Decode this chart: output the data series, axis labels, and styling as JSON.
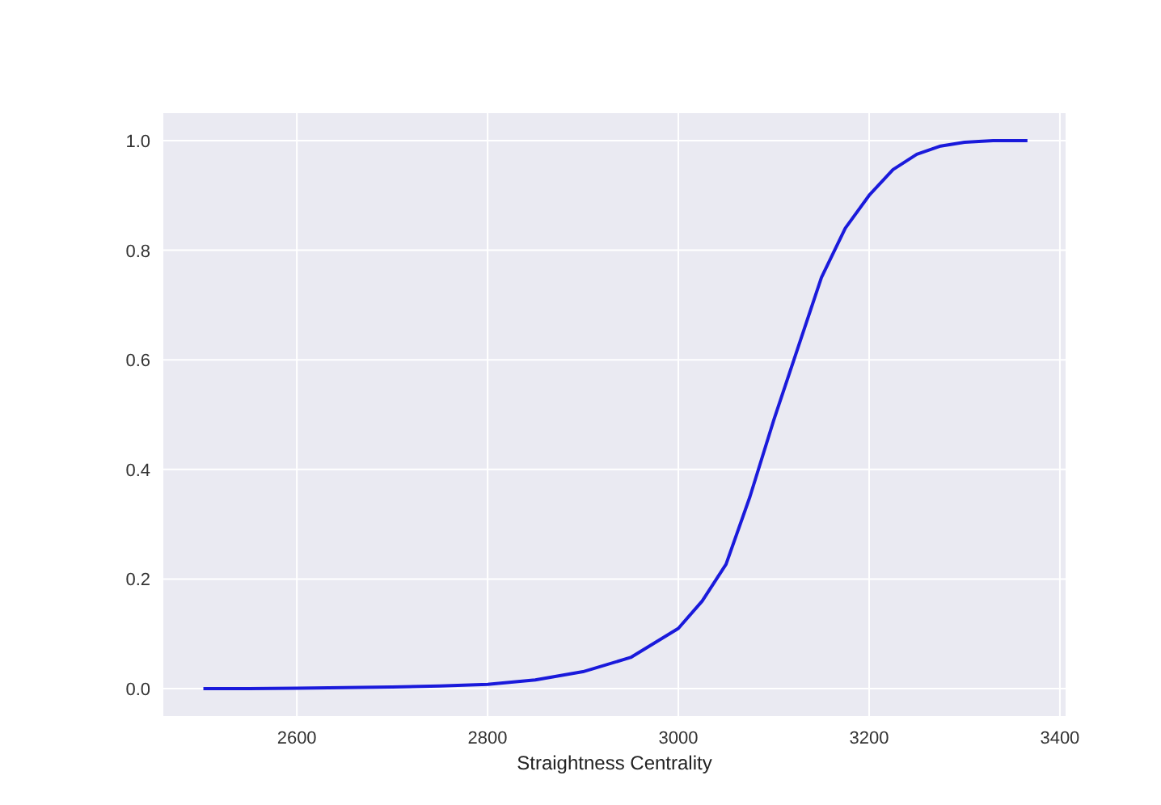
{
  "chart_data": {
    "type": "line",
    "xlabel": "Straightness Centrality",
    "xlim": [
      2460,
      3406
    ],
    "xticks": [
      2600,
      2800,
      3000,
      3200,
      3400
    ],
    "ylim": [
      -0.05,
      1.05
    ],
    "yticks": [
      {
        "value": 0,
        "label": "0.0"
      },
      {
        "value": 0.2,
        "label": "0.2"
      },
      {
        "value": 0.4,
        "label": "0.4"
      },
      {
        "value": 0.6,
        "label": "0.6"
      },
      {
        "value": 0.8,
        "label": "0.8"
      },
      {
        "value": 1,
        "label": "1.0"
      }
    ],
    "grid": true,
    "x": [
      2502,
      2550,
      2600,
      2650,
      2700,
      2750,
      2800,
      2850,
      2900,
      2950,
      3000,
      3025,
      3050,
      3075,
      3100,
      3125,
      3150,
      3175,
      3200,
      3225,
      3250,
      3275,
      3300,
      3330,
      3366
    ],
    "series": [
      {
        "color": "#1a1adb",
        "values": [
          0,
          0,
          0.001,
          0.002,
          0.003,
          0.005,
          0.008,
          0.016,
          0.031,
          0.057,
          0.11,
          0.16,
          0.227,
          0.35,
          0.49,
          0.62,
          0.75,
          0.84,
          0.9,
          0.947,
          0.975,
          0.99,
          0.997,
          1.0,
          1.0
        ]
      }
    ]
  }
}
